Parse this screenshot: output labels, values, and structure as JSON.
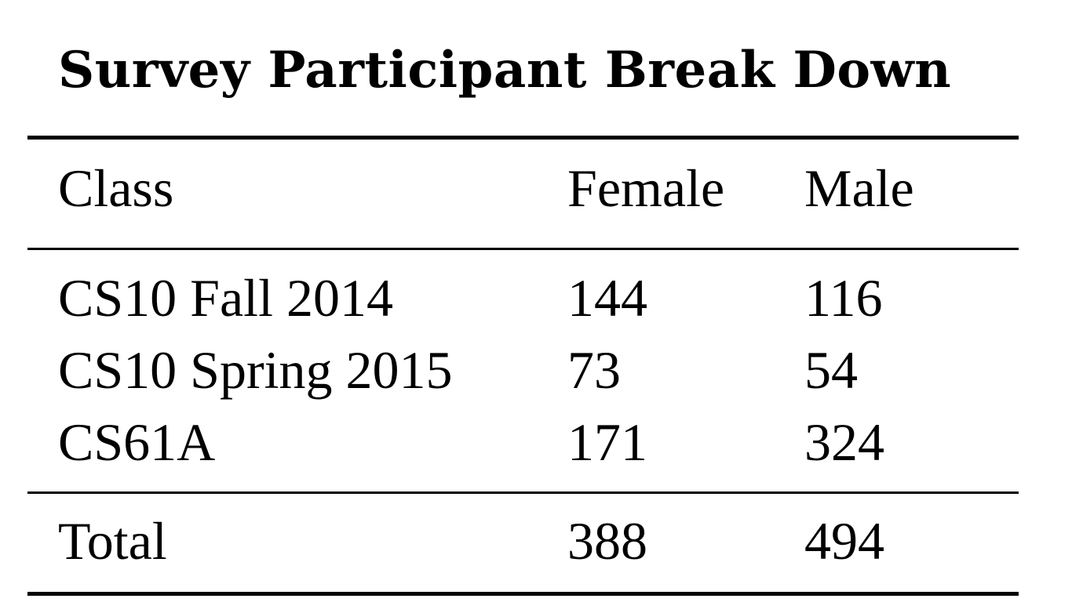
{
  "title": "Survey Participant Break Down",
  "table": {
    "headers": [
      "Class",
      "Female",
      "Male"
    ],
    "rows": [
      [
        "CS10 Fall 2014",
        "144",
        "116"
      ],
      [
        "CS10 Spring 2015",
        "73",
        "54"
      ],
      [
        "CS61A",
        "171",
        "324"
      ]
    ],
    "total": [
      "Total",
      "388",
      "494"
    ]
  }
}
